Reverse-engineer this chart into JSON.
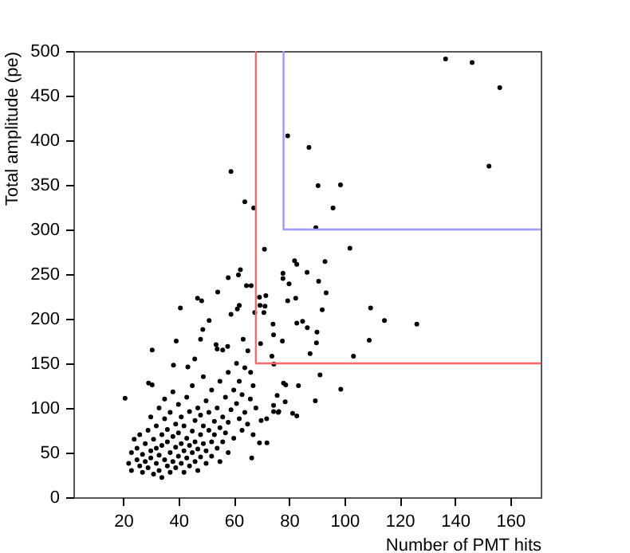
{
  "chart_data": {
    "type": "scatter",
    "xlabel": "Number of PMT hits",
    "ylabel": "Total amplitude (pe)",
    "xlim": [
      2,
      171
    ],
    "ylim": [
      0,
      500
    ],
    "xticks": [
      20,
      40,
      60,
      80,
      100,
      120,
      140,
      160
    ],
    "yticks": [
      0,
      50,
      100,
      150,
      200,
      250,
      300,
      350,
      400,
      450,
      500
    ],
    "grid": false,
    "series": [
      {
        "marker": "circle",
        "color": "#000000",
        "x": [
          22,
          23,
          23,
          24,
          25,
          25,
          26,
          26,
          27,
          27,
          28,
          28,
          29,
          29,
          30,
          30,
          30,
          31,
          31,
          32,
          32,
          32,
          33,
          33,
          33,
          34,
          34,
          34,
          35,
          35,
          35,
          36,
          36,
          36,
          37,
          37,
          37,
          38,
          38,
          38,
          39,
          39,
          39,
          40,
          40,
          40,
          41,
          41,
          41,
          42,
          42,
          42,
          43,
          43,
          43,
          44,
          44,
          44,
          45,
          45,
          45,
          46,
          46,
          46,
          47,
          47,
          47,
          48,
          48,
          48,
          49,
          49,
          49,
          50,
          50,
          50,
          51,
          51,
          52,
          52,
          52,
          53,
          53,
          54,
          54,
          55,
          55,
          55,
          56,
          56,
          57,
          57,
          58,
          58,
          58,
          59,
          60,
          60,
          61,
          61,
          62,
          62,
          63,
          63,
          64,
          64,
          65,
          66,
          67,
          67,
          68,
          136.6,
          146.2,
          156.2,
          79.5,
          87.2,
          90.5,
          98.6,
          95.9,
          89.7,
          152.3,
          64,
          67.2,
          71.1,
          102,
          82,
          82.8,
          93,
          86.5,
          77.8,
          77.8,
          90.7,
          80,
          59,
          58,
          61.7,
          62.4,
          66.3,
          93.4,
          71.6,
          69.3,
          82.4,
          79.5,
          69.5,
          71.3,
          70.9,
          92,
          109.5,
          114.5,
          126.2,
          82.8,
          84.9,
          86.6,
          74.2,
          90.1,
          74.4,
          77.6,
          69.7,
          89.9,
          109,
          87.6,
          103.3,
          73.8,
          74.5,
          91.2,
          78,
          78.8,
          83.4,
          98.7,
          75.7,
          78.6,
          89.5,
          81.3,
          82.8,
          74.4,
          76.3,
          71.9,
          69.9,
          69.3,
          72,
          66.5,
          20.7,
          30.5,
          29.2,
          30.5,
          40.7,
          46.9,
          48.4,
          54.2,
          64.6,
          62,
          59,
          61.3,
          67.6,
          51.1,
          48.8,
          48,
          53.6,
          54,
          56,
          57.8,
          63.4,
          65.1,
          39.2,
          38.2,
          43.4,
          45.9,
          66.1,
          74.4,
          76.1
        ],
        "values": [
          38,
          50,
          30,
          65,
          42,
          55,
          35,
          70,
          48,
          28,
          60,
          40,
          75,
          33,
          52,
          90,
          44,
          26,
          65,
          38,
          80,
          55,
          100,
          47,
          30,
          70,
          58,
          22,
          42,
          88,
          110,
          35,
          62,
          76,
          50,
          28,
          95,
          68,
          40,
          118,
          56,
          82,
          33,
          46,
          72,
          104,
          60,
          38,
          90,
          52,
          80,
          28,
          66,
          112,
          44,
          58,
          96,
          35,
          74,
          50,
          125,
          40,
          86,
          62,
          100,
          54,
          30,
          70,
          92,
          45,
          80,
          60,
          135,
          52,
          108,
          38,
          75,
          95,
          62,
          120,
          46,
          85,
          70,
          100,
          55,
          130,
          78,
          40,
          90,
          62,
          112,
          72,
          140,
          84,
          50,
          98,
          120,
          66,
          105,
          150,
          88,
          130,
          75,
          115,
          95,
          145,
          82,
          110,
          125,
          70,
          100,
          491,
          487,
          459,
          405,
          392,
          349,
          350,
          324,
          302,
          371,
          331,
          324,
          278,
          279,
          265,
          261,
          264,
          252,
          251,
          245,
          242,
          239,
          365,
          246,
          249,
          255,
          237,
          229,
          226,
          224,
          223,
          220,
          215,
          214,
          207,
          210,
          212,
          198,
          194,
          195,
          197,
          190,
          194,
          185,
          182,
          175,
          172,
          173,
          176,
          161,
          158,
          158,
          149,
          137,
          128,
          126,
          125,
          121,
          114,
          107,
          108,
          94,
          91,
          96,
          96,
          88,
          86,
          61,
          61,
          44,
          111,
          165,
          128,
          126,
          212,
          223,
          220,
          230,
          237,
          215,
          205,
          211,
          207,
          198,
          188,
          177,
          171,
          166,
          165,
          169,
          177,
          164,
          175,
          148,
          146,
          155,
          140,
          103,
          95
        ]
      },
      {
        "type": "line",
        "marker": "none",
        "color": "#ff6666",
        "line_style": "solid",
        "x": [
          68,
          68,
          171
        ],
        "values": [
          500,
          150,
          150
        ]
      },
      {
        "type": "line",
        "marker": "none",
        "color": "#9999ff",
        "line_style": "solid",
        "x": [
          78,
          78,
          171
        ],
        "values": [
          500,
          300,
          300
        ]
      }
    ]
  }
}
